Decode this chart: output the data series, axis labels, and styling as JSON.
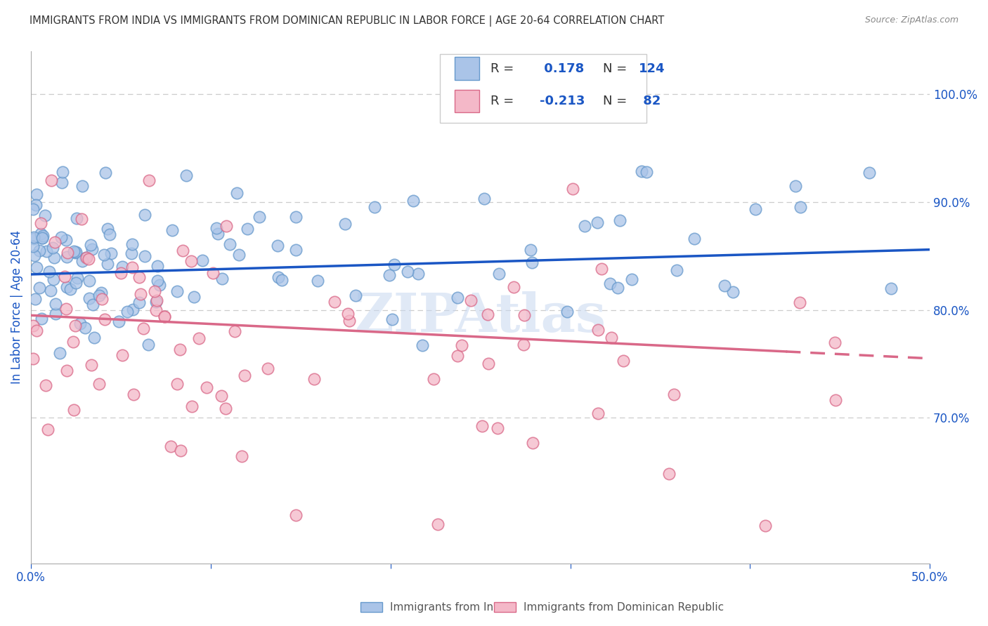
{
  "title": "IMMIGRANTS FROM INDIA VS IMMIGRANTS FROM DOMINICAN REPUBLIC IN LABOR FORCE | AGE 20-64 CORRELATION CHART",
  "source": "Source: ZipAtlas.com",
  "ylabel": "In Labor Force | Age 20-64",
  "xlim": [
    0.0,
    0.5
  ],
  "ylim": [
    0.565,
    1.04
  ],
  "xticks": [
    0.0,
    0.1,
    0.2,
    0.3,
    0.4,
    0.5
  ],
  "xtick_labels": [
    "0.0%",
    "",
    "",
    "",
    "",
    "50.0%"
  ],
  "ytick_labels_right": [
    "100.0%",
    "90.0%",
    "80.0%",
    "70.0%"
  ],
  "ytick_positions_right": [
    1.0,
    0.9,
    0.8,
    0.7
  ],
  "india_color": "#aac4e8",
  "india_edge_color": "#6699cc",
  "dr_color": "#f4b8c8",
  "dr_edge_color": "#d96888",
  "trend_india_color": "#1a56c4",
  "trend_dr_color": "#d96888",
  "india_R": 0.178,
  "india_N": 124,
  "dr_R": -0.213,
  "dr_N": 82,
  "india_trend_x0": 0.0,
  "india_trend_y0": 0.833,
  "india_trend_x1": 0.5,
  "india_trend_y1": 0.856,
  "dr_trend_x0": 0.0,
  "dr_trend_y0": 0.795,
  "dr_trend_x1": 0.5,
  "dr_trend_y1": 0.755,
  "watermark": "ZIPAtlas",
  "watermark_color": "#c8d8f0",
  "background_color": "#ffffff",
  "grid_color": "#cccccc",
  "title_color": "#333333",
  "axis_label_color": "#1a56c4",
  "axis_tick_color": "#1a56c4",
  "legend_text_color": "#333333",
  "legend_value_color": "#1a56c4"
}
